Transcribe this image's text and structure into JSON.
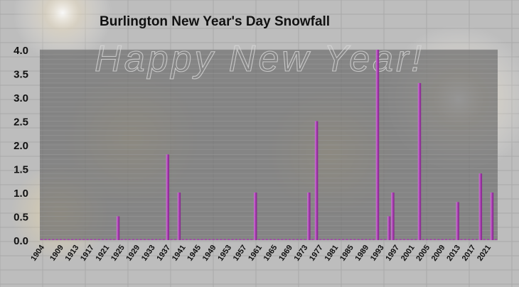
{
  "chart_data": {
    "type": "bar",
    "title": "Burlington New Year's Day Snowfall",
    "watermark": "Happy New Year!",
    "xlabel": "",
    "ylabel": "",
    "ylim": [
      0,
      4.0
    ],
    "yticks": [
      "0.0",
      "0.5",
      "1.0",
      "1.5",
      "2.0",
      "2.5",
      "3.0",
      "3.5",
      "4.0"
    ],
    "year_start": 1904,
    "year_end": 2023,
    "xtick_labels": [
      "1904",
      "1909",
      "1913",
      "1917",
      "1921",
      "1925",
      "1929",
      "1933",
      "1937",
      "1941",
      "1945",
      "1949",
      "1953",
      "1957",
      "1961",
      "1965",
      "1969",
      "1973",
      "1977",
      "1981",
      "1985",
      "1989",
      "1993",
      "1997",
      "2001",
      "2005",
      "2009",
      "2013",
      "2017",
      "2021"
    ],
    "nonzero_values": [
      {
        "year": 1924,
        "value": 0.5
      },
      {
        "year": 1937,
        "value": 1.8
      },
      {
        "year": 1940,
        "value": 1.0
      },
      {
        "year": 1960,
        "value": 1.0
      },
      {
        "year": 1974,
        "value": 1.0
      },
      {
        "year": 1976,
        "value": 2.5
      },
      {
        "year": 1992,
        "value": 4.0
      },
      {
        "year": 1995,
        "value": 0.5
      },
      {
        "year": 1996,
        "value": 1.0
      },
      {
        "year": 2003,
        "value": 3.3
      },
      {
        "year": 2013,
        "value": 0.8
      },
      {
        "year": 2019,
        "value": 1.4
      },
      {
        "year": 2022,
        "value": 1.0
      }
    ],
    "grid": true,
    "colors": {
      "bar": "#a83fb0",
      "bar_highlight": "#d27ad9",
      "plot_bg": "#7a7a7a",
      "page_bg": "#bdbdbd",
      "text": "#111111"
    }
  }
}
